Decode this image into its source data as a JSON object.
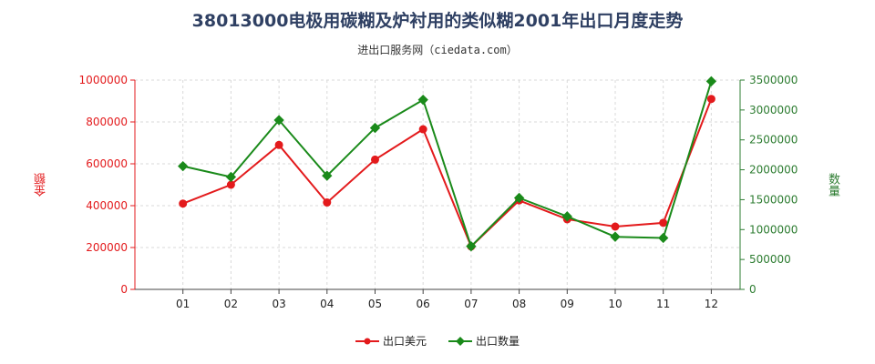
{
  "title": "38013000电极用碳糊及炉衬用的类似糊2001年出口月度走势",
  "subtitle": "进出口服务网（ciedata.com）",
  "chart_data": {
    "type": "line",
    "categories": [
      "01",
      "02",
      "03",
      "04",
      "05",
      "06",
      "07",
      "08",
      "09",
      "10",
      "11",
      "12"
    ],
    "ylabel_left": "金额",
    "ylabel_right": "数量",
    "ylim_left": [
      0,
      1000000
    ],
    "ylim_right": [
      0,
      3500000
    ],
    "yticks_left": [
      "0",
      "200000",
      "400000",
      "600000",
      "800000",
      "1000000"
    ],
    "yticks_right": [
      "0",
      "500000",
      "1000000",
      "1500000",
      "2000000",
      "2500000",
      "3000000",
      "3500000"
    ],
    "grid": true,
    "series": [
      {
        "name": "出口美元",
        "axis": "left",
        "color": "#e31a1c",
        "values": [
          410000,
          500000,
          690000,
          415000,
          620000,
          765000,
          205000,
          425000,
          335000,
          300000,
          318000,
          910000
        ]
      },
      {
        "name": "出口数量",
        "axis": "right",
        "color": "#1a8a1a",
        "values": [
          2060000,
          1880000,
          2830000,
          1900000,
          2700000,
          3170000,
          720000,
          1530000,
          1220000,
          880000,
          860000,
          3480000
        ]
      }
    ]
  }
}
